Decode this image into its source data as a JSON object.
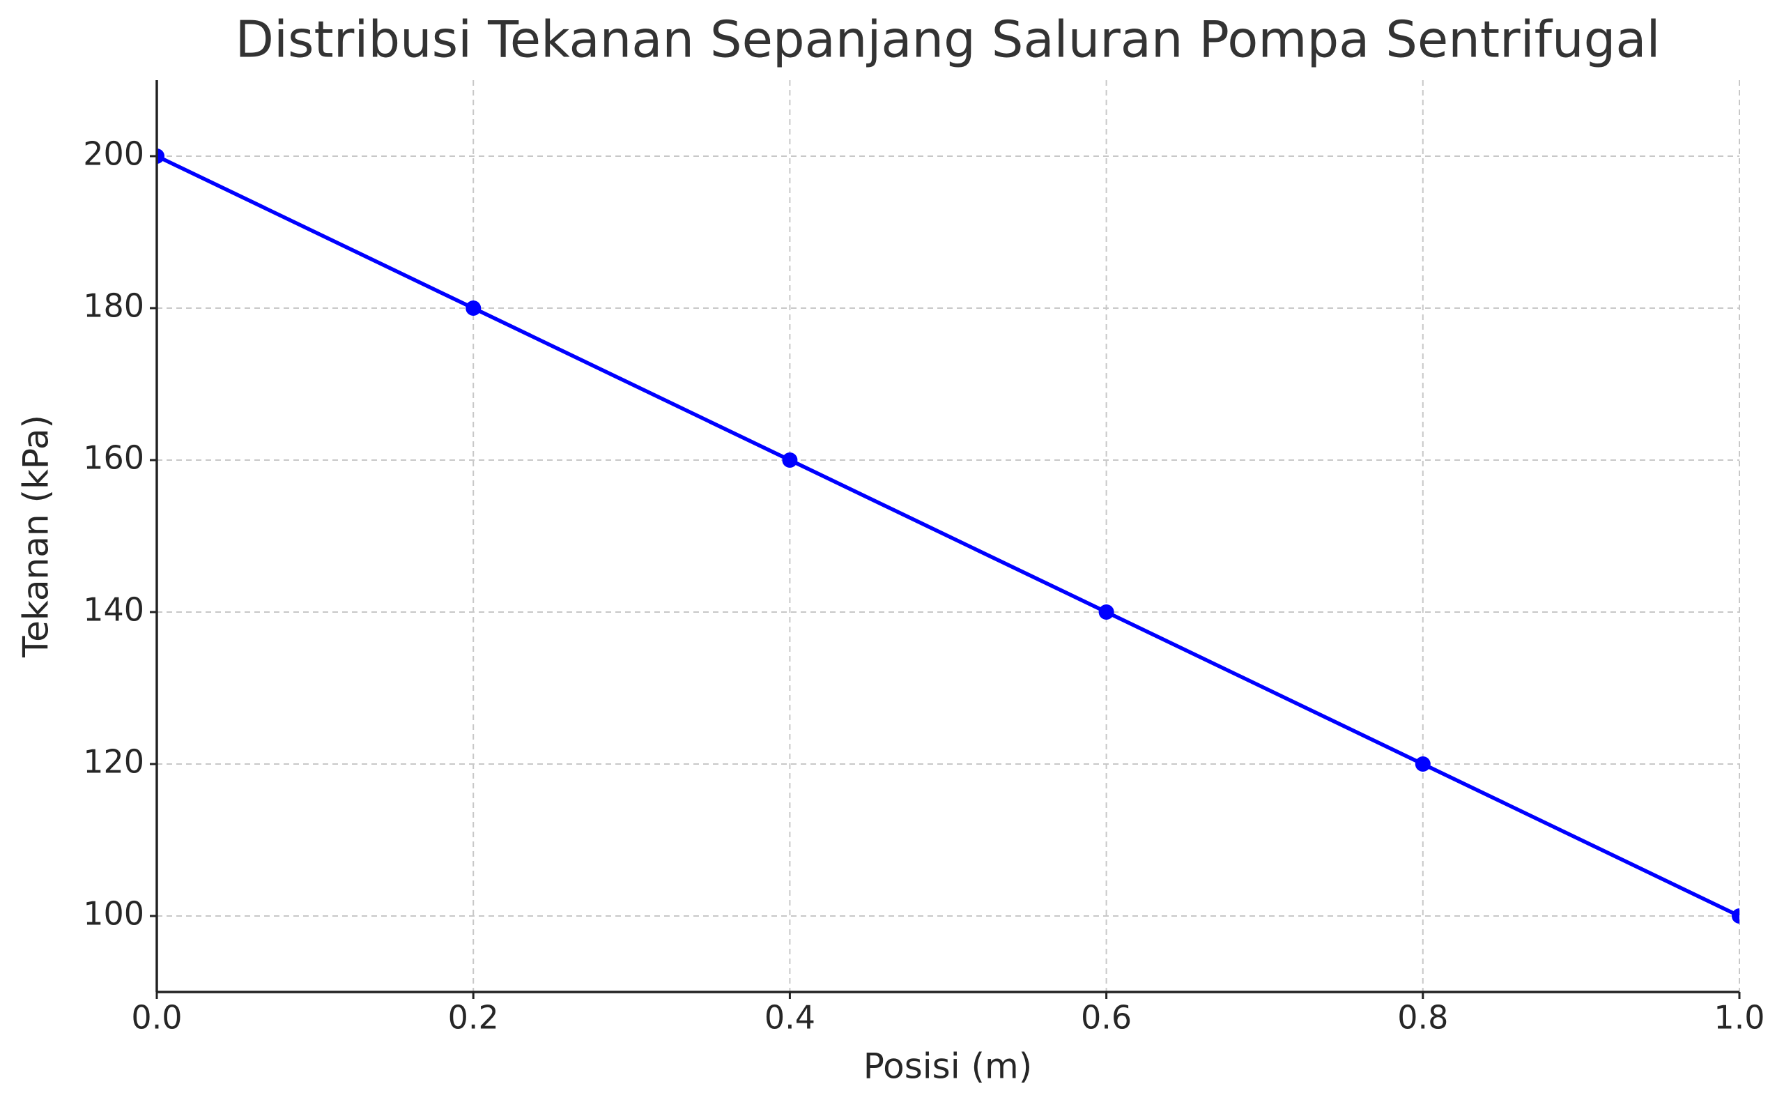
{
  "chart_data": {
    "type": "line",
    "title": "Distribusi Tekanan Sepanjang Saluran Pompa Sentrifugal",
    "x_label": "Posisi (m)",
    "y_label": "Tekanan (kPa)",
    "x": [
      0,
      0.2,
      0.4,
      0.6,
      0.8,
      1
    ],
    "values": [
      200,
      180,
      160,
      140,
      120,
      100
    ],
    "color": "#0000ff",
    "marker": "o",
    "xlim": [
      0,
      1
    ],
    "ylim": [
      90,
      210
    ],
    "xticks": [
      {
        "value": 0,
        "label": "0.0"
      },
      0.2,
      0.4,
      0.6,
      0.8,
      {
        "value": 1,
        "label": "1.0"
      }
    ],
    "yticks": [
      100,
      120,
      140,
      160,
      180,
      200
    ],
    "grid": true
  }
}
